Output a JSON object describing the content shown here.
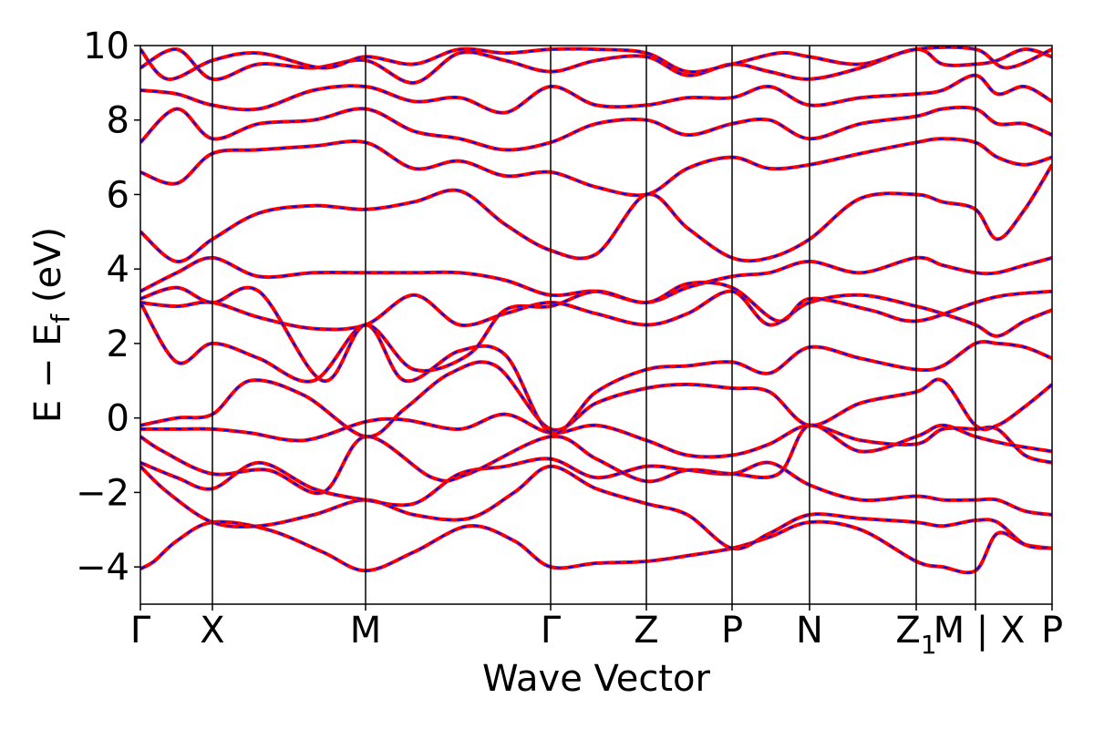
{
  "chart_data": {
    "type": "line",
    "title": "",
    "xlabel": "Wave Vector",
    "ylabel_parts": {
      "main": "E − E",
      "subscript": "f",
      "unit": "(eV)"
    },
    "ylim": [
      -5,
      10
    ],
    "yticks": [
      "−4",
      "−2",
      "0",
      "2",
      "4",
      "6",
      "8",
      "10"
    ],
    "ytick_values": [
      -4,
      -2,
      0,
      2,
      4,
      6,
      8,
      10
    ],
    "k_path": [
      "Γ",
      "X",
      "M",
      "Γ",
      "Z",
      "P",
      "N",
      "Z1",
      "M | X",
      "P"
    ],
    "k_label_texts": [
      "Γ",
      "X",
      "M",
      "Γ",
      "Z",
      "P",
      "N",
      "Z",
      "M | X",
      "P"
    ],
    "k_label_subscripts": [
      "",
      "",
      "",
      "",
      "",
      "",
      "",
      "1",
      "",
      ""
    ],
    "k_positions": [
      0,
      0.79,
      2.47,
      4.5,
      5.55,
      6.49,
      7.34,
      8.51,
      9.16,
      10.0
    ],
    "grid": false,
    "legend": "none",
    "series_colors": {
      "band": "#ff0000",
      "overlay": "#0000ff"
    },
    "bands": [
      {
        "k": [
          0,
          0.15,
          0.4,
          0.79,
          1.4,
          2.0,
          2.47,
          3.0,
          3.6,
          4.1,
          4.5,
          5.0,
          5.55,
          6.0,
          6.49,
          6.9,
          7.34,
          7.9,
          8.51,
          8.8,
          9.16,
          9.4,
          9.7,
          10.0
        ],
        "e": [
          -4.05,
          -3.85,
          -3.3,
          -2.8,
          -3.0,
          -3.6,
          -4.1,
          -3.6,
          -2.9,
          -3.3,
          -4.0,
          -3.9,
          -3.85,
          -3.7,
          -3.5,
          -3.2,
          -2.8,
          -3.0,
          -3.85,
          -4.0,
          -4.1,
          -3.1,
          -3.4,
          -3.5
        ]
      },
      {
        "k": [
          0,
          0.3,
          0.79,
          1.3,
          1.9,
          2.47,
          3.0,
          3.6,
          4.1,
          4.5,
          5.0,
          5.55,
          6.0,
          6.49,
          6.9,
          7.34,
          7.9,
          8.51,
          8.8,
          9.16,
          9.4,
          9.7,
          10.0
        ],
        "e": [
          -1.3,
          -2.0,
          -2.8,
          -2.9,
          -2.6,
          -2.2,
          -2.6,
          -2.7,
          -2.0,
          -1.3,
          -1.9,
          -2.3,
          -2.6,
          -3.5,
          -3.1,
          -2.6,
          -2.7,
          -2.8,
          -2.9,
          -2.75,
          -2.8,
          -3.4,
          -3.5
        ]
      },
      {
        "k": [
          0,
          0.4,
          0.79,
          1.3,
          1.9,
          2.47,
          3.0,
          3.5,
          4.0,
          4.5,
          5.0,
          5.55,
          6.0,
          6.49,
          6.9,
          7.34,
          7.9,
          8.51,
          8.8,
          9.16,
          9.4,
          9.7,
          10.0
        ],
        "e": [
          -1.2,
          -1.6,
          -1.9,
          -1.2,
          -1.9,
          -2.2,
          -2.3,
          -1.5,
          -1.3,
          -1.1,
          -1.6,
          -1.3,
          -1.4,
          -1.5,
          -1.2,
          -1.8,
          -2.2,
          -2.1,
          -2.2,
          -2.2,
          -2.2,
          -2.5,
          -2.6
        ]
      },
      {
        "k": [
          0,
          0.4,
          0.79,
          1.2,
          1.8,
          2.47,
          2.9,
          3.5,
          4.0,
          4.5,
          5.0,
          5.55,
          6.0,
          6.49,
          6.9,
          7.34,
          7.9,
          8.51,
          8.8,
          9.16,
          9.4,
          9.7,
          10.0
        ],
        "e": [
          -0.3,
          -0.3,
          -0.3,
          -0.4,
          -0.6,
          -0.1,
          -0.05,
          -0.3,
          0.1,
          -0.4,
          -0.2,
          -0.6,
          -1.0,
          -1.0,
          -0.7,
          -0.2,
          -0.6,
          -0.7,
          -0.3,
          -0.3,
          -0.3,
          -1.0,
          -1.2
        ]
      },
      {
        "k": [
          0,
          0.4,
          0.79,
          1.2,
          1.8,
          2.47,
          2.9,
          3.4,
          3.9,
          4.5,
          5.0,
          5.55,
          6.0,
          6.49,
          6.9,
          7.34,
          7.9,
          8.51,
          8.8,
          9.16,
          9.4,
          9.7,
          10.0
        ],
        "e": [
          -0.2,
          0.0,
          0.1,
          1.0,
          0.6,
          -0.5,
          0.25,
          1.2,
          1.4,
          -0.3,
          0.4,
          0.8,
          0.9,
          0.8,
          0.7,
          -0.2,
          0.4,
          0.7,
          1.0,
          -0.2,
          -0.2,
          0.3,
          0.9
        ]
      },
      {
        "k": [
          0,
          0.4,
          0.79,
          1.3,
          1.9,
          2.47,
          2.9,
          3.5,
          4.0,
          4.5,
          5.0,
          5.55,
          6.0,
          6.49,
          6.9,
          7.34,
          7.9,
          8.51,
          8.8,
          9.16,
          9.4,
          9.7,
          10.0
        ],
        "e": [
          3.1,
          1.5,
          2.0,
          1.6,
          1.0,
          2.5,
          1.0,
          1.8,
          1.7,
          -0.4,
          0.7,
          1.3,
          1.4,
          1.5,
          1.2,
          1.9,
          1.6,
          1.3,
          1.4,
          2.0,
          2.0,
          1.9,
          1.6
        ]
      },
      {
        "k": [
          0,
          0.4,
          0.79,
          1.3,
          1.9,
          2.47,
          3.0,
          3.5,
          4.0,
          4.5,
          5.0,
          5.55,
          6.0,
          6.49,
          6.9,
          7.34,
          7.9,
          8.51,
          8.8,
          9.16,
          9.4,
          9.7,
          10.0
        ],
        "e": [
          3.1,
          3.0,
          3.1,
          2.7,
          2.4,
          2.5,
          3.3,
          2.5,
          2.8,
          3.1,
          2.8,
          2.5,
          2.8,
          3.4,
          2.5,
          3.1,
          3.3,
          3.0,
          2.8,
          2.5,
          2.2,
          2.6,
          2.9
        ]
      },
      {
        "k": [
          0,
          0.4,
          0.79,
          1.3,
          1.9,
          2.47,
          3.0,
          3.5,
          4.0,
          4.5,
          5.0,
          5.55,
          6.0,
          6.49,
          6.9,
          7.34,
          7.9,
          8.51,
          8.8,
          9.16,
          9.4,
          9.7,
          10.0
        ],
        "e": [
          3.4,
          3.9,
          4.3,
          3.8,
          3.9,
          3.9,
          3.9,
          3.9,
          3.7,
          3.3,
          3.4,
          3.1,
          3.5,
          3.8,
          3.9,
          4.2,
          3.9,
          4.3,
          4.1,
          3.9,
          3.9,
          4.1,
          4.3
        ]
      },
      {
        "k": [
          0,
          0.4,
          0.79,
          1.3,
          1.9,
          2.47,
          3.0,
          3.5,
          4.0,
          4.5,
          5.0,
          5.55,
          6.0,
          6.49,
          6.9,
          7.34,
          7.9,
          8.51,
          8.8,
          9.16,
          9.4,
          9.7,
          10.0
        ],
        "e": [
          5.0,
          4.2,
          4.8,
          5.5,
          5.7,
          5.6,
          5.8,
          6.1,
          5.2,
          4.5,
          4.4,
          6.0,
          5.1,
          4.3,
          4.3,
          4.8,
          5.9,
          6.0,
          5.8,
          5.6,
          4.8,
          5.6,
          6.8
        ]
      },
      {
        "k": [
          0,
          0.4,
          0.79,
          1.3,
          1.9,
          2.47,
          3.0,
          3.5,
          4.0,
          4.5,
          5.0,
          5.55,
          6.0,
          6.49,
          6.9,
          7.34,
          7.9,
          8.51,
          8.8,
          9.16,
          9.4,
          9.7,
          10.0
        ],
        "e": [
          6.6,
          6.3,
          7.1,
          7.2,
          7.3,
          7.4,
          6.7,
          6.9,
          6.5,
          6.6,
          6.2,
          6.0,
          6.7,
          7.0,
          6.7,
          6.8,
          7.1,
          7.4,
          7.5,
          7.4,
          7.0,
          6.8,
          7.0
        ]
      },
      {
        "k": [
          0,
          0.4,
          0.79,
          1.3,
          1.9,
          2.47,
          3.0,
          3.5,
          4.0,
          4.5,
          5.0,
          5.55,
          6.0,
          6.49,
          6.9,
          7.34,
          7.9,
          8.51,
          8.8,
          9.16,
          9.4,
          9.7,
          10.0
        ],
        "e": [
          7.4,
          8.3,
          7.5,
          7.9,
          8.0,
          8.3,
          7.7,
          7.5,
          7.2,
          7.4,
          7.9,
          8.0,
          7.6,
          7.9,
          8.0,
          7.5,
          7.9,
          8.1,
          8.3,
          8.3,
          7.9,
          7.9,
          7.6
        ]
      },
      {
        "k": [
          0,
          0.4,
          0.79,
          1.3,
          1.9,
          2.47,
          3.0,
          3.5,
          4.0,
          4.5,
          5.0,
          5.55,
          6.0,
          6.49,
          6.9,
          7.34,
          7.9,
          8.51,
          8.8,
          9.16,
          9.4,
          9.7,
          10.0
        ],
        "e": [
          8.8,
          8.7,
          8.4,
          8.3,
          8.8,
          8.9,
          8.5,
          8.6,
          8.2,
          8.9,
          8.4,
          8.4,
          8.6,
          8.6,
          8.9,
          8.4,
          8.6,
          8.7,
          8.8,
          9.2,
          8.7,
          8.9,
          8.5
        ]
      },
      {
        "k": [
          0,
          0.4,
          0.79,
          1.3,
          1.9,
          2.47,
          3.0,
          3.5,
          4.0,
          4.5,
          5.0,
          5.55,
          6.0,
          6.49,
          6.9,
          7.34,
          7.9,
          8.51,
          8.8,
          9.16,
          9.4,
          9.7,
          10.0
        ],
        "e": [
          9.4,
          9.9,
          9.1,
          9.5,
          9.4,
          9.6,
          9.0,
          9.8,
          9.6,
          9.3,
          9.6,
          9.7,
          9.2,
          9.5,
          9.3,
          9.1,
          9.4,
          9.9,
          9.5,
          9.5,
          9.6,
          9.9,
          9.7
        ]
      },
      {
        "k": [
          0,
          0.25,
          0.79,
          1.4,
          2.0,
          2.47,
          3.2,
          3.6,
          4.5,
          5.0,
          5.55,
          6.0,
          6.49,
          7.0,
          7.34,
          7.9,
          8.51,
          8.8,
          9.16,
          9.5,
          10.0
        ],
        "e": [
          -0.5,
          -0.9,
          -1.5,
          -1.4,
          -2.0,
          -0.5,
          -1.6,
          -1.5,
          -0.5,
          -1.1,
          -1.7,
          -1.4,
          -1.5,
          -1.5,
          -0.2,
          -0.9,
          -0.5,
          -0.2,
          -0.5,
          -0.7,
          -0.9
        ]
      },
      {
        "k": [
          0,
          0.4,
          0.79,
          1.3,
          2.0,
          2.47,
          3.0,
          3.6,
          4.0,
          4.5,
          5.0,
          5.55,
          6.0,
          6.49,
          7.0,
          7.34,
          8.0,
          8.51,
          9.16,
          9.5,
          10.0
        ],
        "e": [
          3.2,
          3.5,
          3.1,
          3.4,
          1.0,
          2.5,
          1.3,
          1.7,
          2.9,
          3.0,
          3.4,
          3.1,
          3.6,
          3.5,
          2.6,
          3.2,
          2.9,
          2.6,
          3.1,
          3.3,
          3.4
        ]
      },
      {
        "k": [
          0,
          0.3,
          0.79,
          1.3,
          2.0,
          2.47,
          3.0,
          3.5,
          4.0,
          4.5,
          5.0,
          5.55,
          6.0,
          6.49,
          7.0,
          7.34,
          7.9,
          8.51,
          9.16,
          9.5,
          10.0
        ],
        "e": [
          9.9,
          9.1,
          9.6,
          9.8,
          9.4,
          9.7,
          9.5,
          9.9,
          9.8,
          9.9,
          9.9,
          9.8,
          9.3,
          9.5,
          9.8,
          9.7,
          9.5,
          9.9,
          9.9,
          9.4,
          9.9
        ]
      }
    ]
  }
}
